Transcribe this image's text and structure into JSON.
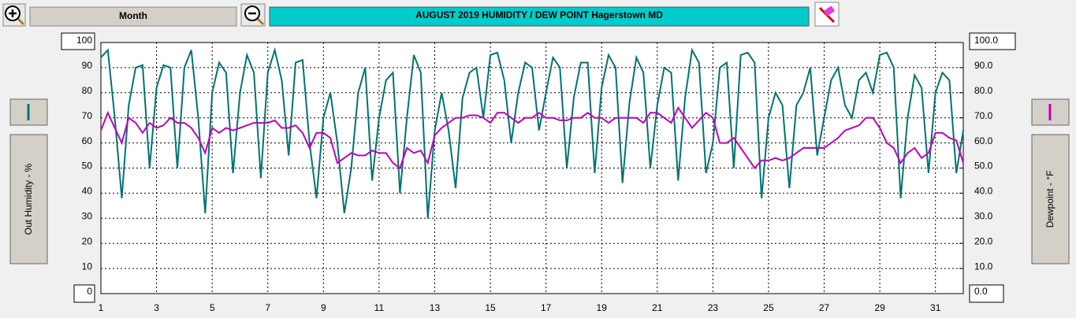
{
  "toolbar": {
    "range_button": "Month"
  },
  "chart_data": {
    "type": "line",
    "title": "AUGUST  2019   HUMIDITY / DEW POINT  Hagerstown MD",
    "ylabel": "Out Humidity - %",
    "y2label": "Dewpoint - °F",
    "x": [
      1,
      1.25,
      1.5,
      1.75,
      2,
      2.25,
      2.5,
      2.75,
      3,
      3.25,
      3.5,
      3.75,
      4,
      4.25,
      4.5,
      4.75,
      5,
      5.25,
      5.5,
      5.75,
      6,
      6.25,
      6.5,
      6.75,
      7,
      7.25,
      7.5,
      7.75,
      8,
      8.25,
      8.5,
      8.75,
      9,
      9.25,
      9.5,
      9.75,
      10,
      10.25,
      10.5,
      10.75,
      11,
      11.25,
      11.5,
      11.75,
      12,
      12.25,
      12.5,
      12.75,
      13,
      13.25,
      13.5,
      13.75,
      14,
      14.25,
      14.5,
      14.75,
      15,
      15.25,
      15.5,
      15.75,
      16,
      16.25,
      16.5,
      16.75,
      17,
      17.25,
      17.5,
      17.75,
      18,
      18.25,
      18.5,
      18.75,
      19,
      19.25,
      19.5,
      19.75,
      20,
      20.25,
      20.5,
      20.75,
      21,
      21.25,
      21.5,
      21.75,
      22,
      22.25,
      22.5,
      22.75,
      23,
      23.25,
      23.5,
      23.75,
      24,
      24.25,
      24.5,
      24.75,
      25,
      25.25,
      25.5,
      25.75,
      26,
      26.25,
      26.5,
      26.75,
      27,
      27.25,
      27.5,
      27.75,
      28,
      28.25,
      28.5,
      28.75,
      29,
      29.25,
      29.5,
      29.75,
      30,
      30.25,
      30.5,
      30.75,
      31,
      31.25,
      31.5,
      31.75,
      32
    ],
    "series": [
      {
        "name": "Out Humidity",
        "color": "#007373",
        "axis": "y",
        "values": [
          94,
          97,
          70,
          38,
          75,
          90,
          91,
          50,
          82,
          91,
          90,
          50,
          90,
          97,
          70,
          32,
          80,
          92,
          88,
          48,
          80,
          95,
          88,
          46,
          88,
          97,
          85,
          55,
          92,
          93,
          60,
          38,
          70,
          80,
          60,
          32,
          50,
          80,
          90,
          45,
          70,
          85,
          88,
          40,
          70,
          95,
          88,
          30,
          65,
          80,
          65,
          42,
          78,
          88,
          90,
          70,
          95,
          96,
          85,
          60,
          80,
          92,
          90,
          65,
          80,
          94,
          90,
          50,
          78,
          92,
          92,
          48,
          82,
          95,
          90,
          44,
          76,
          94,
          88,
          50,
          75,
          90,
          88,
          45,
          78,
          97,
          92,
          48,
          60,
          90,
          92,
          50,
          95,
          96,
          92,
          38,
          70,
          80,
          75,
          42,
          75,
          80,
          90,
          55,
          70,
          85,
          90,
          75,
          70,
          85,
          88,
          80,
          95,
          96,
          90,
          38,
          70,
          87,
          82,
          48,
          80,
          88,
          85,
          48,
          65
        ]
      },
      {
        "name": "Dewpoint",
        "color": "#c000c0",
        "axis": "y2",
        "values": [
          65,
          72,
          66,
          60,
          70,
          68,
          64,
          68,
          66,
          67,
          70,
          68,
          68,
          66,
          62,
          56,
          66,
          64,
          66,
          65,
          66,
          67,
          68,
          68,
          68,
          69,
          66,
          66,
          67,
          64,
          58,
          64,
          64,
          62,
          52,
          54,
          56,
          55,
          55,
          57,
          56,
          56,
          52,
          50,
          58,
          56,
          57,
          52,
          63,
          66,
          68,
          70,
          70,
          71,
          71,
          70,
          68,
          72,
          72,
          70,
          68,
          70,
          70,
          72,
          70,
          70,
          69,
          69,
          70,
          70,
          72,
          70,
          70,
          68,
          70,
          70,
          70,
          70,
          68,
          72,
          72,
          70,
          68,
          74,
          70,
          66,
          69,
          72,
          70,
          60,
          60,
          62,
          58,
          54,
          50,
          53,
          53,
          54,
          53,
          54,
          56,
          58,
          58,
          58,
          58,
          60,
          62,
          65,
          66,
          67,
          70,
          70,
          66,
          60,
          58,
          52,
          56,
          58,
          54,
          56,
          64,
          64,
          62,
          61,
          52
        ]
      }
    ],
    "xlim": [
      1,
      32
    ],
    "xticks": [
      1,
      3,
      5,
      7,
      9,
      11,
      13,
      15,
      17,
      19,
      21,
      23,
      25,
      27,
      29,
      31
    ],
    "ylim": [
      0,
      100
    ],
    "yticks": [
      0,
      10,
      20,
      30,
      40,
      50,
      60,
      70,
      80,
      90,
      100
    ],
    "y2lim": [
      0,
      100
    ],
    "y2ticks": [
      {
        "value": 0,
        "label": "0.0"
      },
      {
        "value": 10,
        "label": "10.0"
      },
      {
        "value": 20,
        "label": "20.0"
      },
      {
        "value": 30,
        "label": "30.0"
      },
      {
        "value": 40,
        "label": "40.0"
      },
      {
        "value": 50,
        "label": "50.0"
      },
      {
        "value": 60,
        "label": "60.0"
      },
      {
        "value": 70,
        "label": "70.0"
      },
      {
        "value": 80,
        "label": "80.0"
      },
      {
        "value": 90,
        "label": "90.0"
      },
      {
        "value": 100,
        "label": "100.0"
      }
    ],
    "grid": true
  }
}
